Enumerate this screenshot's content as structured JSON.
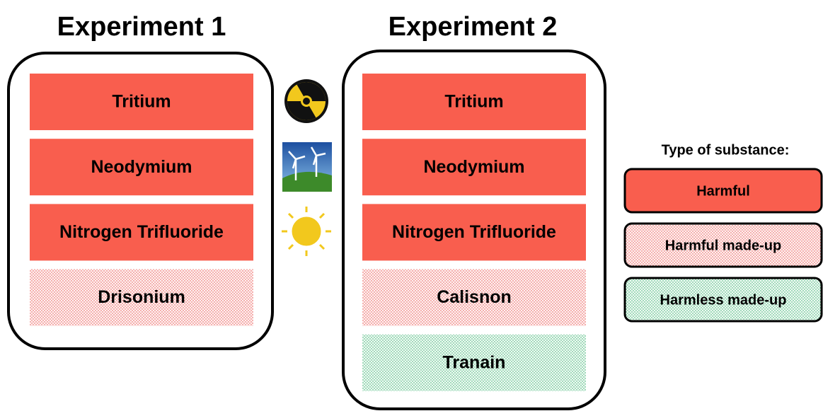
{
  "experiments": [
    {
      "title": "Experiment 1",
      "items": [
        {
          "label": "Tritium",
          "color": "#f95e4e",
          "dotted": false
        },
        {
          "label": "Neodymium",
          "color": "#f95e4e",
          "dotted": false
        },
        {
          "label": "Nitrogen Trifluoride",
          "color": "#f95e4e",
          "dotted": false
        },
        {
          "label": "Drisonium",
          "color": "#e8504a",
          "dotted": true
        }
      ]
    },
    {
      "title": "Experiment 2",
      "items": [
        {
          "label": "Tritium",
          "color": "#f95e4e",
          "dotted": false
        },
        {
          "label": "Neodymium",
          "color": "#f95e4e",
          "dotted": false
        },
        {
          "label": "Nitrogen Trifluoride",
          "color": "#f95e4e",
          "dotted": false
        },
        {
          "label": "Calisnon",
          "color": "#e8504a",
          "dotted": true
        },
        {
          "label": "Tranain",
          "color": "#2fae6a",
          "dotted": true
        }
      ]
    }
  ],
  "legend": {
    "title": "Type of substance:",
    "items": [
      {
        "label": "Harmful",
        "color": "#f95e4e",
        "dotted": false
      },
      {
        "label": "Harmful made-up",
        "color": "#e8504a",
        "dotted": true
      },
      {
        "label": "Harmless made-up",
        "color": "#2fae6a",
        "dotted": true
      }
    ]
  }
}
